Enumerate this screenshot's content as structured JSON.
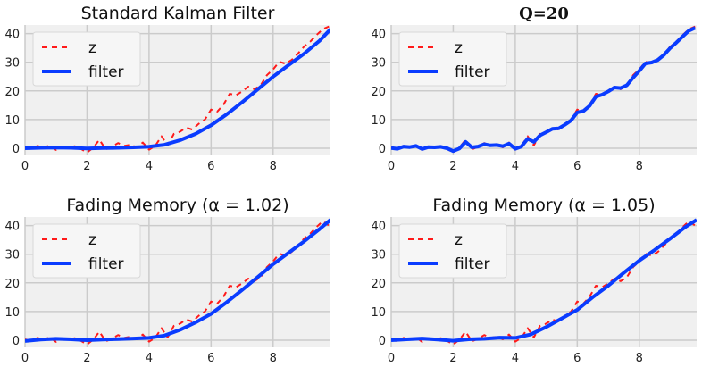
{
  "chart_data": [
    {
      "type": "line",
      "title": "Standard Kalman Filter",
      "xlabel": "",
      "ylabel": "",
      "xlim": [
        0,
        9.85
      ],
      "ylim": [
        -2.5,
        43
      ],
      "xticks": [
        0,
        2,
        4,
        6,
        8
      ],
      "yticks": [
        0,
        10,
        20,
        30,
        40
      ],
      "grid": true,
      "legend": "top-left",
      "series": [
        {
          "name": "z",
          "style": "dashed",
          "color": "#ff1a1a",
          "x": [
            0,
            0.2,
            0.4,
            0.6,
            0.8,
            1.0,
            1.2,
            1.4,
            1.6,
            1.8,
            2.0,
            2.2,
            2.4,
            2.6,
            2.8,
            3.0,
            3.2,
            3.4,
            3.6,
            3.8,
            4.0,
            4.2,
            4.4,
            4.6,
            4.8,
            5.0,
            5.2,
            5.4,
            5.6,
            5.8,
            6.0,
            6.2,
            6.4,
            6.6,
            6.8,
            7.0,
            7.2,
            7.4,
            7.6,
            7.8,
            8.0,
            8.2,
            8.4,
            8.6,
            8.8,
            9.0,
            9.2,
            9.4,
            9.6,
            9.8
          ],
          "y": [
            0.3,
            -0.4,
            0.8,
            0.2,
            1.0,
            -0.6,
            0.5,
            0.2,
            0.7,
            -0.2,
            -1.5,
            0.2,
            3.0,
            -0.4,
            0.5,
            1.8,
            0.8,
            1.2,
            0.3,
            2.0,
            -0.5,
            0.8,
            4.2,
            1.0,
            5.0,
            5.8,
            7.2,
            6.5,
            8.5,
            10.0,
            13.5,
            12.8,
            15.2,
            19.0,
            18.5,
            19.8,
            21.5,
            20.6,
            22.0,
            25.5,
            27.5,
            30.2,
            29.5,
            30.8,
            33.0,
            35.5,
            37.2,
            39.5,
            41.5,
            42.5
          ]
        },
        {
          "name": "filter",
          "style": "solid",
          "color": "#0a3cff",
          "x": [
            0,
            0.5,
            1.0,
            1.5,
            2.0,
            2.5,
            3.0,
            3.5,
            4.0,
            4.5,
            5.0,
            5.5,
            6.0,
            6.5,
            7.0,
            7.5,
            8.0,
            8.5,
            9.0,
            9.5,
            9.85
          ],
          "y": [
            0,
            0.15,
            0.2,
            0.15,
            -0.1,
            0.05,
            0.15,
            0.3,
            0.55,
            1.2,
            2.8,
            5.0,
            8.0,
            11.8,
            16.0,
            20.5,
            25.0,
            29.0,
            33.0,
            37.5,
            41.5
          ]
        }
      ]
    },
    {
      "type": "line",
      "title": "Q=20",
      "xlabel": "",
      "ylabel": "",
      "xlim": [
        0,
        9.85
      ],
      "ylim": [
        -2.5,
        43
      ],
      "xticks": [
        0,
        2,
        4,
        6,
        8
      ],
      "yticks": [
        0,
        10,
        20,
        30,
        40
      ],
      "grid": true,
      "legend": "top-left",
      "series": [
        {
          "name": "z",
          "style": "dashed",
          "color": "#ff1a1a",
          "x": [
            0,
            0.2,
            0.4,
            0.6,
            0.8,
            1.0,
            1.2,
            1.4,
            1.6,
            1.8,
            2.0,
            2.2,
            2.4,
            2.6,
            2.8,
            3.0,
            3.2,
            3.4,
            3.6,
            3.8,
            4.0,
            4.2,
            4.4,
            4.6,
            4.8,
            5.0,
            5.2,
            5.4,
            5.6,
            5.8,
            6.0,
            6.2,
            6.4,
            6.6,
            6.8,
            7.0,
            7.2,
            7.4,
            7.6,
            7.8,
            8.0,
            8.2,
            8.4,
            8.6,
            8.8,
            9.0,
            9.2,
            9.4,
            9.6,
            9.8
          ],
          "y": [
            0.3,
            -0.4,
            0.8,
            0.2,
            1.0,
            -0.6,
            0.5,
            0.2,
            0.7,
            -0.2,
            -1.5,
            0.2,
            3.0,
            -0.4,
            0.5,
            1.8,
            0.8,
            1.2,
            0.3,
            2.0,
            -0.5,
            0.8,
            4.2,
            1.0,
            5.0,
            5.8,
            7.2,
            6.5,
            8.5,
            10.0,
            13.5,
            12.8,
            15.2,
            19.0,
            18.5,
            19.8,
            21.5,
            20.6,
            22.0,
            25.5,
            27.5,
            30.2,
            29.5,
            30.8,
            33.0,
            35.5,
            37.2,
            39.5,
            41.5,
            42.5
          ]
        },
        {
          "name": "filter",
          "style": "solid",
          "color": "#0a3cff",
          "x": [
            0,
            0.2,
            0.4,
            0.6,
            0.8,
            1.0,
            1.2,
            1.4,
            1.6,
            1.8,
            2.0,
            2.2,
            2.4,
            2.6,
            2.8,
            3.0,
            3.2,
            3.4,
            3.6,
            3.8,
            4.0,
            4.2,
            4.4,
            4.6,
            4.8,
            5.0,
            5.2,
            5.4,
            5.6,
            5.8,
            6.0,
            6.2,
            6.4,
            6.6,
            6.8,
            7.0,
            7.2,
            7.4,
            7.6,
            7.8,
            8.0,
            8.2,
            8.4,
            8.6,
            8.8,
            9.0,
            9.2,
            9.4,
            9.6,
            9.8
          ],
          "y": [
            0.1,
            -0.2,
            0.6,
            0.4,
            0.8,
            -0.3,
            0.4,
            0.3,
            0.5,
            0.0,
            -1.0,
            -0.1,
            2.2,
            0.3,
            0.6,
            1.4,
            1.0,
            1.1,
            0.7,
            1.6,
            -0.2,
            0.6,
            3.3,
            2.2,
            4.5,
            5.6,
            6.8,
            6.9,
            8.2,
            9.7,
            12.5,
            13.0,
            14.8,
            18.0,
            18.7,
            19.8,
            21.2,
            21.0,
            22.0,
            24.6,
            27.0,
            29.6,
            29.9,
            30.8,
            32.6,
            35.0,
            36.9,
            39.0,
            41.0,
            42.0
          ]
        }
      ]
    },
    {
      "type": "line",
      "title": "Fading Memory (α = 1.02)",
      "xlabel": "",
      "ylabel": "",
      "xlim": [
        0,
        9.85
      ],
      "ylim": [
        -2.5,
        43
      ],
      "xticks": [
        0,
        2,
        4,
        6,
        8
      ],
      "yticks": [
        0,
        10,
        20,
        30,
        40
      ],
      "grid": true,
      "legend": "top-left",
      "series": [
        {
          "name": "z",
          "style": "dashed",
          "color": "#ff1a1a",
          "x": [
            0,
            0.2,
            0.4,
            0.6,
            0.8,
            1.0,
            1.2,
            1.4,
            1.6,
            1.8,
            2.0,
            2.2,
            2.4,
            2.6,
            2.8,
            3.0,
            3.2,
            3.4,
            3.6,
            3.8,
            4.0,
            4.2,
            4.4,
            4.6,
            4.8,
            5.0,
            5.2,
            5.4,
            5.6,
            5.8,
            6.0,
            6.2,
            6.4,
            6.6,
            6.8,
            7.0,
            7.2,
            7.4,
            7.6,
            7.8,
            8.0,
            8.2,
            8.4,
            8.6,
            8.8,
            9.0,
            9.2,
            9.4,
            9.6,
            9.8
          ],
          "y": [
            0.3,
            -0.4,
            0.8,
            0.2,
            1.0,
            -0.6,
            0.5,
            0.2,
            0.7,
            -0.2,
            -1.5,
            0.2,
            3.0,
            -0.4,
            0.5,
            1.8,
            0.8,
            1.2,
            0.3,
            2.0,
            -0.5,
            0.8,
            4.2,
            1.0,
            5.0,
            5.8,
            7.2,
            6.5,
            8.5,
            10.0,
            13.5,
            12.8,
            15.2,
            19.0,
            18.5,
            19.8,
            21.5,
            20.6,
            22.0,
            25.5,
            27.5,
            30.2,
            29.5,
            30.8,
            33.0,
            35.5,
            37.2,
            39.5,
            41.5,
            40.0
          ]
        },
        {
          "name": "filter",
          "style": "solid",
          "color": "#0a3cff",
          "x": [
            0,
            0.5,
            1.0,
            1.5,
            2.0,
            2.5,
            3.0,
            3.5,
            4.0,
            4.5,
            5.0,
            5.5,
            6.0,
            6.5,
            7.0,
            7.5,
            8.0,
            8.5,
            9.0,
            9.5,
            9.85
          ],
          "y": [
            -0.3,
            0.2,
            0.5,
            0.3,
            0.0,
            0.2,
            0.4,
            0.6,
            0.8,
            1.6,
            3.6,
            6.2,
            9.2,
            13.2,
            17.5,
            22.0,
            26.5,
            30.5,
            34.5,
            38.8,
            42.0
          ]
        }
      ]
    },
    {
      "type": "line",
      "title": "Fading Memory (α = 1.05)",
      "xlabel": "",
      "ylabel": "",
      "xlim": [
        0,
        9.85
      ],
      "ylim": [
        -2.5,
        43
      ],
      "xticks": [
        0,
        2,
        4,
        6,
        8
      ],
      "yticks": [
        0,
        10,
        20,
        30,
        40
      ],
      "grid": true,
      "legend": "top-left",
      "series": [
        {
          "name": "z",
          "style": "dashed",
          "color": "#ff1a1a",
          "x": [
            0,
            0.2,
            0.4,
            0.6,
            0.8,
            1.0,
            1.2,
            1.4,
            1.6,
            1.8,
            2.0,
            2.2,
            2.4,
            2.6,
            2.8,
            3.0,
            3.2,
            3.4,
            3.6,
            3.8,
            4.0,
            4.2,
            4.4,
            4.6,
            4.8,
            5.0,
            5.2,
            5.4,
            5.6,
            5.8,
            6.0,
            6.2,
            6.4,
            6.6,
            6.8,
            7.0,
            7.2,
            7.4,
            7.6,
            7.8,
            8.0,
            8.2,
            8.4,
            8.6,
            8.8,
            9.0,
            9.2,
            9.4,
            9.6,
            9.8
          ],
          "y": [
            0.3,
            -0.4,
            0.8,
            0.2,
            1.0,
            -0.6,
            0.5,
            0.2,
            0.7,
            -0.2,
            -1.5,
            0.2,
            3.0,
            -0.4,
            0.5,
            1.8,
            0.8,
            1.2,
            0.3,
            2.0,
            -0.5,
            0.8,
            4.2,
            1.0,
            5.0,
            5.8,
            7.2,
            6.5,
            8.5,
            10.0,
            13.5,
            12.8,
            15.2,
            19.0,
            18.5,
            19.8,
            21.5,
            20.6,
            22.0,
            25.5,
            27.5,
            30.2,
            29.5,
            30.8,
            33.0,
            35.5,
            37.2,
            39.5,
            41.5,
            40.0
          ]
        },
        {
          "name": "filter",
          "style": "solid",
          "color": "#0a3cff",
          "x": [
            0,
            0.5,
            1.0,
            1.5,
            2.0,
            2.5,
            3.0,
            3.5,
            4.0,
            4.5,
            5.0,
            5.5,
            6.0,
            6.5,
            7.0,
            7.5,
            8.0,
            8.5,
            9.0,
            9.5,
            9.85
          ],
          "y": [
            0,
            0.3,
            0.6,
            0.2,
            -0.2,
            0.3,
            0.5,
            0.9,
            0.8,
            2.0,
            4.6,
            7.6,
            10.6,
            15.0,
            19.0,
            23.5,
            27.8,
            31.5,
            35.5,
            39.6,
            42.0
          ]
        }
      ]
    }
  ]
}
